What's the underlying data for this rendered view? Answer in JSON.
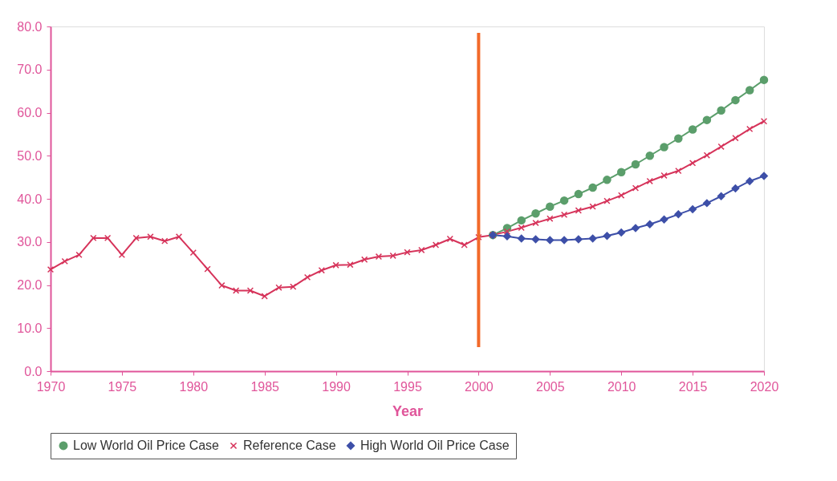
{
  "chart_data": {
    "type": "line",
    "xlabel": "Year",
    "xlim": [
      1970,
      2020
    ],
    "xticks": [
      1970,
      1975,
      1980,
      1985,
      1990,
      1995,
      2000,
      2005,
      2010,
      2015,
      2020
    ],
    "ylim": [
      0,
      80
    ],
    "yticks": [
      {
        "value": 0,
        "label": "0.0"
      },
      {
        "value": 10,
        "label": "10.0"
      },
      {
        "value": 20,
        "label": "20.0"
      },
      {
        "value": 30,
        "label": "30.0"
      },
      {
        "value": 40,
        "label": "40.0"
      },
      {
        "value": 50,
        "label": "50.0"
      },
      {
        "value": 60,
        "label": "60.0"
      },
      {
        "value": 70,
        "label": "70.0"
      },
      {
        "value": 80,
        "label": "80.0"
      }
    ],
    "grid": false,
    "legend": "bottom",
    "line_style": "solid",
    "ref_lines": [
      {
        "axis": "x",
        "value": 2000,
        "color": "#f26a2a"
      }
    ],
    "series": [
      {
        "name": "Low World Oil Price Case",
        "color": "#5b9e6b",
        "marker": "circle",
        "x": [
          2001,
          2002,
          2003,
          2004,
          2005,
          2006,
          2007,
          2008,
          2009,
          2010,
          2011,
          2012,
          2013,
          2014,
          2015,
          2016,
          2017,
          2018,
          2019,
          2020
        ],
        "values": [
          31.6,
          33.2,
          35.0,
          36.6,
          38.2,
          39.6,
          41.1,
          42.6,
          44.4,
          46.2,
          48.0,
          50.0,
          52.0,
          54.0,
          56.1,
          58.3,
          60.5,
          62.9,
          65.2,
          67.6
        ]
      },
      {
        "name": "Reference Case",
        "color": "#d6335a",
        "marker": "cross",
        "x": [
          1970,
          1971,
          1972,
          1973,
          1974,
          1975,
          1976,
          1977,
          1978,
          1979,
          1980,
          1981,
          1982,
          1983,
          1984,
          1985,
          1986,
          1987,
          1988,
          1989,
          1990,
          1991,
          1992,
          1993,
          1994,
          1995,
          1996,
          1997,
          1998,
          1999,
          2000,
          2001,
          2002,
          2003,
          2004,
          2005,
          2006,
          2007,
          2008,
          2009,
          2010,
          2011,
          2012,
          2013,
          2014,
          2015,
          2016,
          2017,
          2018,
          2019,
          2020
        ],
        "values": [
          23.6,
          25.5,
          27.0,
          30.9,
          30.9,
          27.0,
          30.9,
          31.2,
          30.2,
          31.2,
          27.5,
          23.7,
          19.9,
          18.7,
          18.7,
          17.4,
          19.4,
          19.6,
          21.8,
          23.4,
          24.6,
          24.7,
          25.9,
          26.6,
          26.8,
          27.6,
          28.1,
          29.3,
          30.7,
          29.3,
          31.1,
          31.6,
          32.4,
          33.3,
          34.4,
          35.4,
          36.3,
          37.3,
          38.2,
          39.5,
          40.8,
          42.5,
          44.1,
          45.4,
          46.5,
          48.3,
          50.1,
          52.1,
          54.1,
          56.2,
          58.0
        ]
      },
      {
        "name": "High World Oil Price Case",
        "color": "#3d4fa8",
        "marker": "diamond",
        "x": [
          2001,
          2002,
          2003,
          2004,
          2005,
          2006,
          2007,
          2008,
          2009,
          2010,
          2011,
          2012,
          2013,
          2014,
          2015,
          2016,
          2017,
          2018,
          2019,
          2020
        ],
        "values": [
          31.6,
          31.3,
          30.8,
          30.6,
          30.4,
          30.4,
          30.6,
          30.8,
          31.4,
          32.2,
          33.2,
          34.1,
          35.2,
          36.4,
          37.6,
          39.0,
          40.6,
          42.4,
          44.1,
          45.3
        ]
      }
    ]
  }
}
